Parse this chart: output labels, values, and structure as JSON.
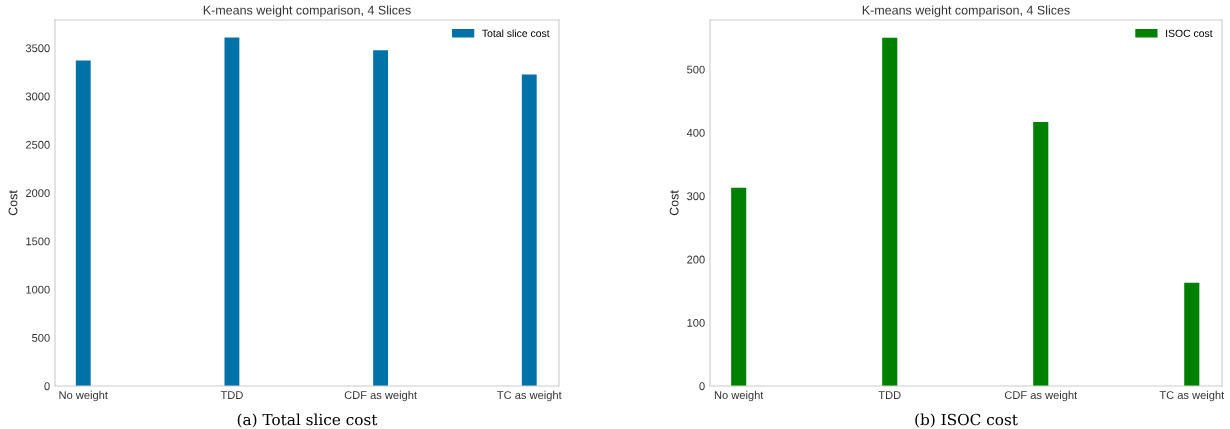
{
  "chart_data": [
    {
      "type": "bar",
      "title": "K-means weight comparison, 4 Slices",
      "ylabel": "Cost",
      "categories": [
        "No weight",
        "TDD",
        "CDF as weight",
        "TC as weight"
      ],
      "series": [
        {
          "name": "Total slice cost",
          "color": "#0072a8",
          "values": [
            3370,
            3610,
            3477,
            3225
          ]
        }
      ],
      "ylim": [
        0,
        3790
      ],
      "yticks": [
        0,
        500,
        1000,
        1500,
        2000,
        2500,
        3000,
        3500
      ],
      "grid": false,
      "legend": "top right",
      "annotations": [
        "(a) Total slice cost"
      ]
    },
    {
      "type": "bar",
      "title": "K-means weight comparison, 4 Slices",
      "ylabel": "Cost",
      "categories": [
        "No weight",
        "TDD",
        "CDF as weight",
        "TC as weight"
      ],
      "series": [
        {
          "name": "ISOC cost",
          "color": "#008000",
          "values": [
            313,
            550,
            417,
            163
          ]
        }
      ],
      "ylim": [
        0,
        578
      ],
      "yticks": [
        0,
        100,
        200,
        300,
        400,
        500
      ],
      "grid": false,
      "legend": "top right",
      "annotations": [
        "(b) ISOC cost"
      ]
    }
  ]
}
